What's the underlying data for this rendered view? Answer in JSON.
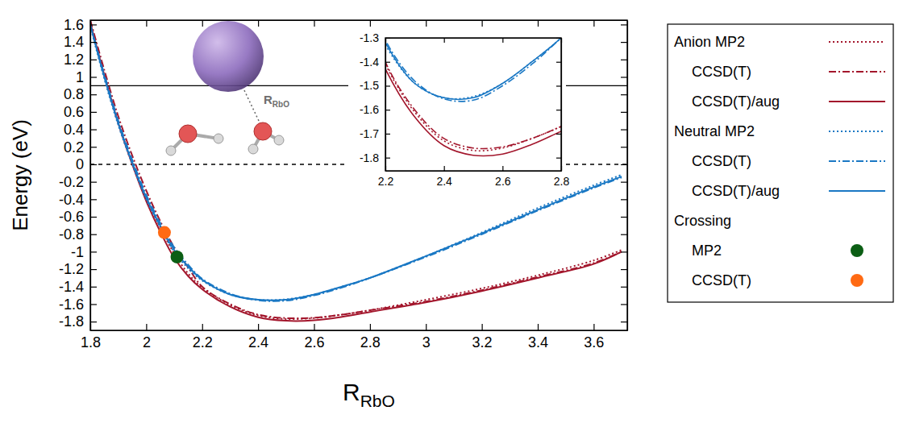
{
  "chart_data": {
    "type": "line",
    "xlabel": "R",
    "xlabel_sub": "RbO",
    "ylabel": "Energy (eV)",
    "xlim": [
      1.8,
      3.72
    ],
    "ylim": [
      -1.9,
      1.65
    ],
    "xticks": [
      1.8,
      2,
      2.2,
      2.4,
      2.6,
      2.8,
      3,
      3.2,
      3.4,
      3.6
    ],
    "yticks": [
      -1.8,
      -1.6,
      -1.4,
      -1.2,
      -1,
      -0.8,
      -0.6,
      -0.4,
      -0.2,
      0,
      0.2,
      0.4,
      0.6,
      0.8,
      1,
      1.2,
      1.4,
      1.6
    ],
    "grid": false,
    "legend": "right",
    "x": [
      1.8,
      1.85,
      1.9,
      1.95,
      2.0,
      2.05,
      2.1,
      2.15,
      2.2,
      2.3,
      2.4,
      2.5,
      2.6,
      2.7,
      2.8,
      3.0,
      3.2,
      3.4,
      3.6,
      3.7
    ],
    "series": [
      {
        "name": "Anion MP2",
        "color": "#a3162c",
        "line_style": "dotted",
        "values": [
          1.6,
          1.02,
          0.48,
          0.02,
          -0.38,
          -0.72,
          -1.02,
          -1.25,
          -1.41,
          -1.61,
          -1.73,
          -1.77,
          -1.76,
          -1.72,
          -1.67,
          -1.55,
          -1.42,
          -1.27,
          -1.1,
          -0.98
        ]
      },
      {
        "name": "CCSD(T)",
        "color": "#a3162c",
        "line_style": "dashdot",
        "values": [
          1.65,
          1.08,
          0.55,
          0.1,
          -0.3,
          -0.65,
          -0.95,
          -1.18,
          -1.4,
          -1.6,
          -1.72,
          -1.76,
          -1.755,
          -1.72,
          -1.67,
          -1.57,
          -1.44,
          -1.29,
          -1.13,
          -1.0
        ]
      },
      {
        "name": "CCSD(T)/aug",
        "color": "#a3162c",
        "line_style": "solid",
        "values": [
          1.62,
          1.02,
          0.47,
          0.0,
          -0.42,
          -0.77,
          -1.07,
          -1.28,
          -1.43,
          -1.63,
          -1.75,
          -1.79,
          -1.785,
          -1.745,
          -1.69,
          -1.58,
          -1.45,
          -1.3,
          -1.14,
          -1.0
        ]
      },
      {
        "name": "Neutral MP2",
        "color": "#1a78c4",
        "line_style": "dotted",
        "values": [
          1.58,
          0.98,
          0.45,
          0.0,
          -0.4,
          -0.72,
          -1.0,
          -1.19,
          -1.33,
          -1.49,
          -1.55,
          -1.545,
          -1.49,
          -1.4,
          -1.3,
          -1.05,
          -0.78,
          -0.5,
          -0.24,
          -0.12
        ]
      },
      {
        "name": "CCSD(T)",
        "color": "#1a78c4",
        "line_style": "dashdot",
        "values": [
          1.6,
          1.03,
          0.5,
          0.05,
          -0.35,
          -0.67,
          -0.95,
          -1.15,
          -1.31,
          -1.48,
          -1.555,
          -1.56,
          -1.5,
          -1.41,
          -1.3,
          -1.06,
          -0.8,
          -0.53,
          -0.27,
          -0.15
        ]
      },
      {
        "name": "CCSD(T)/aug",
        "color": "#1a78c4",
        "line_style": "solid",
        "values": [
          1.6,
          1.0,
          0.47,
          0.02,
          -0.38,
          -0.7,
          -0.98,
          -1.17,
          -1.32,
          -1.49,
          -1.55,
          -1.55,
          -1.49,
          -1.4,
          -1.3,
          -1.05,
          -0.79,
          -0.52,
          -0.26,
          -0.14
        ]
      }
    ],
    "crossings": {
      "title": "Crossing",
      "points": [
        {
          "name": "MP2",
          "color": "#0b5e14",
          "marker": "circle",
          "x": 2.11,
          "y": -1.06
        },
        {
          "name": "CCSD(T)",
          "color": "#ff6a13",
          "marker": "circle",
          "x": 2.065,
          "y": -0.78
        }
      ]
    },
    "hlines": [
      {
        "value": 0.9,
        "line_style": "solid"
      },
      {
        "value": 0,
        "line_style": "dashed"
      }
    ],
    "inset": {
      "xlim": [
        2.2,
        2.8
      ],
      "ylim": [
        -1.855,
        -1.3
      ],
      "xticks": [
        2.2,
        2.4,
        2.6,
        2.8
      ],
      "yticks": [
        -1.8,
        -1.7,
        -1.6,
        -1.5,
        -1.4,
        -1.3
      ]
    },
    "diagram_label": "R",
    "diagram_label_sub": "RbO"
  }
}
